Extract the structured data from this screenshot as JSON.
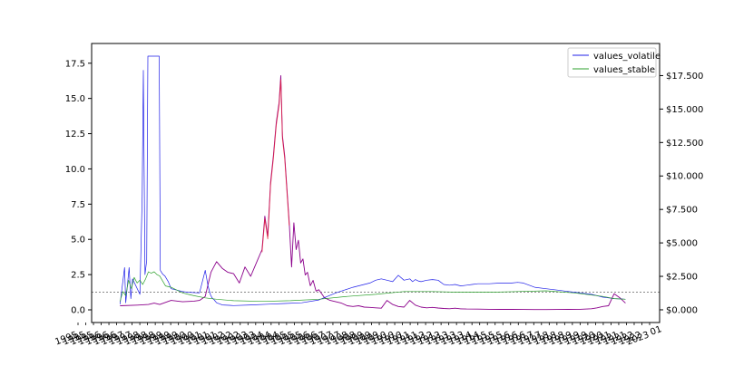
{
  "chart_data": {
    "type": "line",
    "title": "",
    "xlabel": "",
    "ylabel_left": "",
    "ylabel_right": "",
    "grid": false,
    "legend_placement": "top-right",
    "left_axis": {
      "ylim": [
        -0.9,
        18.9
      ],
      "ticks": [
        0.0,
        2.5,
        5.0,
        7.5,
        10.0,
        12.5,
        15.0,
        17.5
      ],
      "tick_labels": [
        "0.0",
        "2.5",
        "5.0",
        "7.5",
        "10.0",
        "12.5",
        "15.0",
        "17.5"
      ]
    },
    "right_axis": {
      "ylim": [
        -950,
        19900
      ],
      "ticks": [
        0,
        2500,
        5000,
        7500,
        10000,
        12500,
        15000,
        17500
      ],
      "tick_labels": [
        "$0.000",
        "$2.500",
        "$5.000",
        "$7.500",
        "$10.000",
        "$12.500",
        "$15.000",
        "$17.500"
      ]
    },
    "x_axis": {
      "xlim": [
        0,
        100
      ],
      "n_ticks": 75,
      "first_tick_label_fragment": "1995",
      "last_tick_label_fragment": "2023",
      "overflow_tick_label": "01"
    },
    "reference_line": {
      "axis": "left",
      "y": 1.25,
      "style": "dotted",
      "color": "#888888"
    },
    "series": [
      {
        "name": "values_volatile",
        "axis": "left",
        "color": "#1f1fe8",
        "x": [
          5,
          5.8,
          6.0,
          6.6,
          6.9,
          7.2,
          8.5,
          8.9,
          9.1,
          9.4,
          9.7,
          9.9,
          11.9,
          12.1,
          12.4,
          12.6,
          12.9,
          13.5,
          14.0,
          15.0,
          16.0,
          17.0,
          19.0,
          20.0,
          20.5,
          20.9,
          21.2,
          21.6,
          22.0,
          23.0,
          25.0,
          28.0,
          31.0,
          34.0,
          37.0,
          40.0,
          43.0,
          46.0,
          49.0,
          50.0,
          51.0,
          52.0,
          53.0,
          54.0,
          55.0,
          56.0,
          56.5,
          57.0,
          57.5,
          58.0,
          59.0,
          60.0,
          61.0,
          62.0,
          63.0,
          64.0,
          65.0,
          66.0,
          67.0,
          68.0,
          70.0,
          72.0,
          74.0,
          75.0,
          76.0,
          78.0,
          80.0,
          82.0,
          84.0,
          86.0,
          88.0,
          89.0,
          90.0,
          91.0,
          92.0,
          93.0,
          94.0
        ],
        "y": [
          0.4,
          3.0,
          0.5,
          3.0,
          0.8,
          2.2,
          1.1,
          8.0,
          17.0,
          2.5,
          3.5,
          18.0,
          18.0,
          2.8,
          2.6,
          2.5,
          2.4,
          2.0,
          1.5,
          1.4,
          1.3,
          1.25,
          1.2,
          2.8,
          1.7,
          1.1,
          0.85,
          0.7,
          0.5,
          0.35,
          0.3,
          0.35,
          0.4,
          0.45,
          0.5,
          0.7,
          1.2,
          1.6,
          1.9,
          2.1,
          2.2,
          2.1,
          2.0,
          2.45,
          2.1,
          2.2,
          2.0,
          2.15,
          2.05,
          2.0,
          2.1,
          2.15,
          2.1,
          1.8,
          1.75,
          1.8,
          1.7,
          1.75,
          1.8,
          1.85,
          1.85,
          1.9,
          1.9,
          1.95,
          1.9,
          1.6,
          1.5,
          1.4,
          1.3,
          1.2,
          1.1,
          1.0,
          0.9,
          0.85,
          0.8,
          0.78,
          0.75
        ]
      },
      {
        "name": "values_stable",
        "axis": "left",
        "color": "#2ca02c",
        "x": [
          5,
          5.5,
          6.0,
          6.5,
          7.0,
          7.5,
          8.0,
          8.5,
          9.0,
          9.5,
          10.0,
          10.5,
          11.0,
          11.5,
          12.0,
          13.0,
          14.0,
          15.0,
          16.0,
          17.0,
          18.0,
          20.0,
          22.0,
          25.0,
          30.0,
          35.0,
          40.0,
          45.0,
          50.0,
          55.0,
          60.0,
          65.0,
          70.0,
          75.0,
          80.0,
          85.0,
          90.0,
          92.0,
          94.0
        ],
        "y": [
          0.6,
          1.3,
          1.0,
          2.1,
          1.5,
          2.3,
          1.9,
          2.1,
          1.8,
          2.2,
          2.7,
          2.6,
          2.7,
          2.5,
          2.4,
          1.7,
          1.6,
          1.4,
          1.2,
          1.1,
          1.0,
          0.85,
          0.75,
          0.65,
          0.6,
          0.65,
          0.75,
          0.95,
          1.1,
          1.3,
          1.3,
          1.25,
          1.25,
          1.3,
          1.35,
          1.2,
          0.95,
          0.8,
          0.75
        ]
      },
      {
        "name": "",
        "axis": "right",
        "color": "#8b008b",
        "x": [
          5,
          8,
          10,
          11,
          12,
          14,
          16,
          18,
          19,
          20,
          21,
          22,
          23,
          24,
          25,
          26,
          27,
          28,
          29,
          30,
          30.5,
          31,
          31.5,
          32,
          32.5,
          33,
          33.3,
          33.6,
          34,
          34.4,
          34.8,
          35.2,
          35.6,
          36,
          36.4,
          36.8,
          37.2,
          37.6,
          38,
          38.5,
          39,
          39.5,
          40,
          41,
          42,
          43,
          44,
          45,
          46,
          47,
          48,
          49,
          50,
          51,
          52,
          53,
          54,
          55,
          56,
          57,
          58,
          59,
          60,
          61,
          62,
          63,
          64,
          65,
          66,
          68,
          70,
          72,
          74,
          76,
          78,
          80,
          82,
          84,
          86,
          88,
          89,
          90,
          91,
          92,
          93,
          94
        ],
        "y": [
          300,
          350,
          400,
          500,
          400,
          700,
          600,
          650,
          700,
          1000,
          2800,
          3600,
          3100,
          2800,
          2700,
          2000,
          3200,
          2500,
          3500,
          4500,
          7000,
          5500,
          9500,
          11500,
          14000,
          15500,
          17500,
          13000,
          11500,
          9000,
          6500,
          3200,
          6500,
          4500,
          5200,
          3500,
          3800,
          2600,
          2800,
          1800,
          2200,
          1400,
          1500,
          900,
          700,
          600,
          500,
          300,
          250,
          300,
          200,
          180,
          150,
          120,
          700,
          400,
          250,
          200,
          700,
          350,
          200,
          150,
          180,
          130,
          100,
          80,
          120,
          70,
          60,
          50,
          40,
          30,
          30,
          25,
          20,
          20,
          25,
          30,
          40,
          80,
          150,
          250,
          300,
          1200,
          900,
          500
        ]
      },
      {
        "name": "",
        "axis": "right",
        "color": "#e8203a",
        "x": [
          30,
          30.5,
          31,
          31.5,
          32,
          32.5,
          33,
          33.3,
          33.6,
          34,
          34.4,
          34.8
        ],
        "y": [
          4300,
          6800,
          5300,
          9300,
          11300,
          13800,
          15300,
          17200,
          12800,
          11300,
          8800,
          6300
        ]
      }
    ]
  }
}
